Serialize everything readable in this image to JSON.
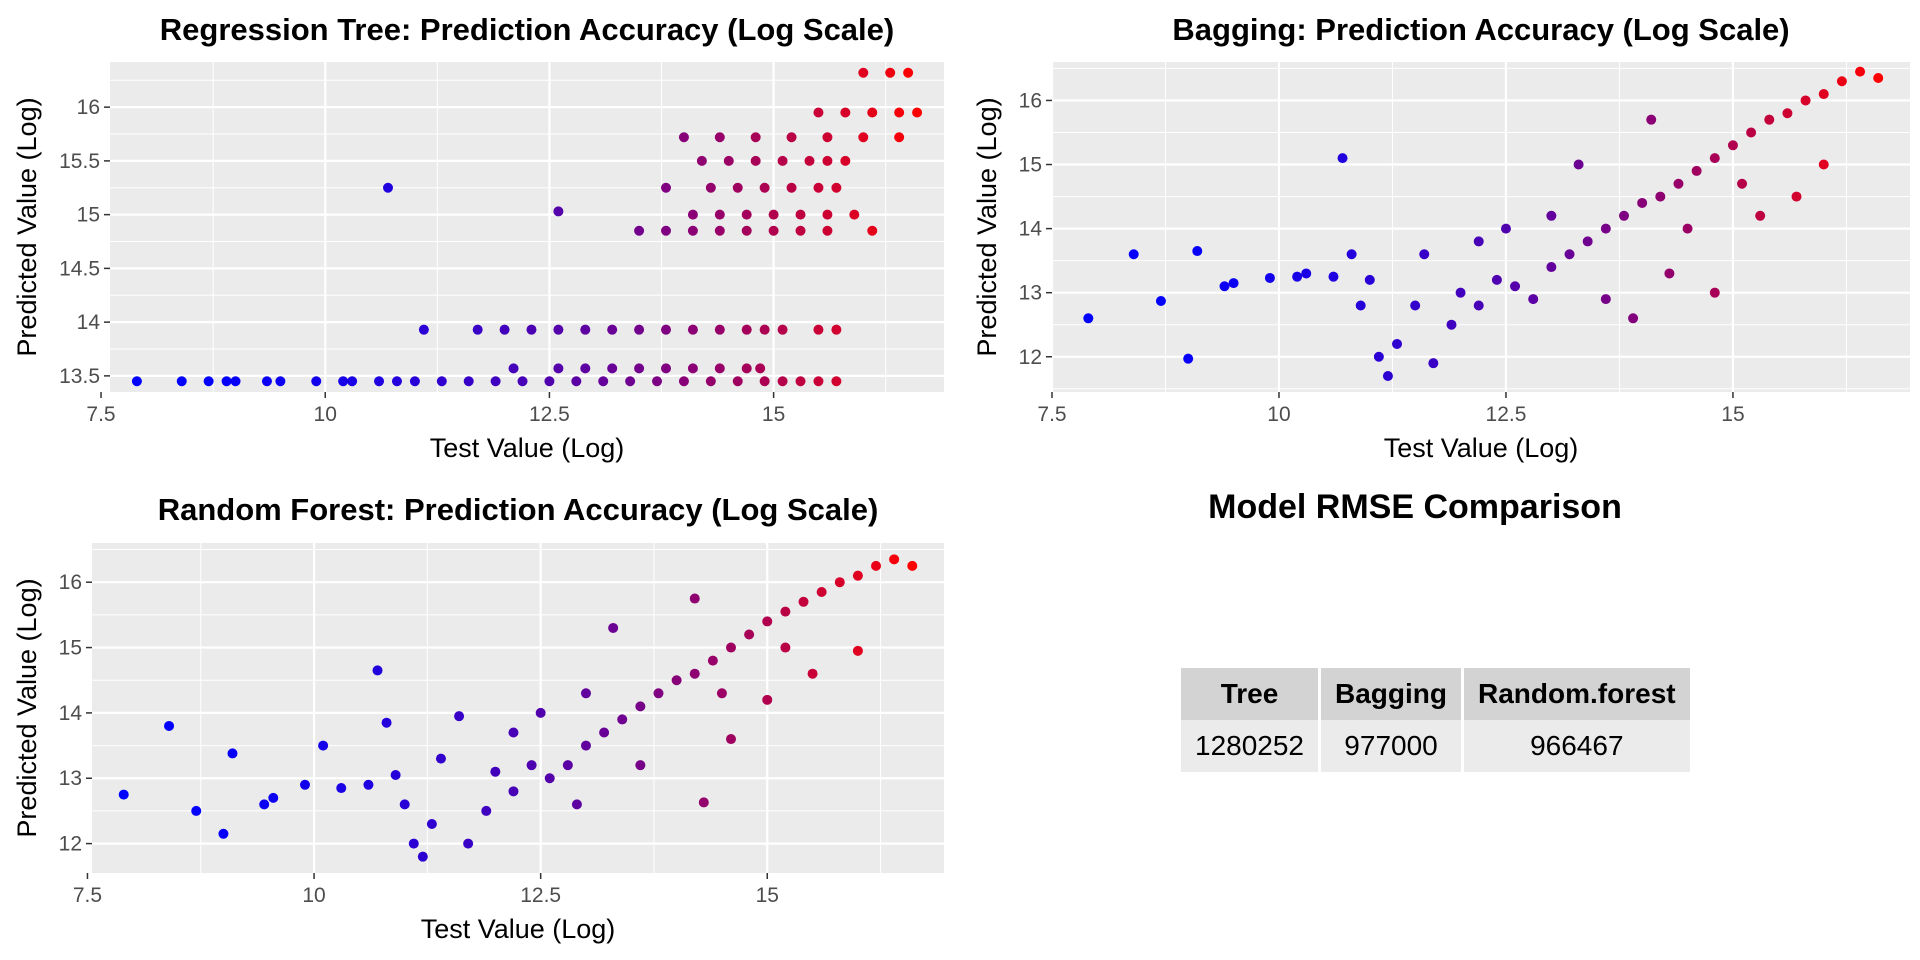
{
  "chart_data": [
    {
      "id": "tree",
      "type": "scatter",
      "title": "Regression Tree: Prediction Accuracy (Log Scale)",
      "xlabel": "Test Value (Log)",
      "ylabel": "Predicted Value (Log)",
      "xlim": [
        7.6,
        16.9
      ],
      "ylim": [
        13.35,
        16.42
      ],
      "xticks": [
        7.5,
        10.0,
        12.5,
        15.0
      ],
      "yticks": [
        13.5,
        14.0,
        14.5,
        15.0,
        15.5,
        16.0
      ],
      "grid": true,
      "color_low": "#0000ff",
      "color_high": "#ff0000",
      "points": [
        [
          7.9,
          13.45
        ],
        [
          8.4,
          13.45
        ],
        [
          8.7,
          13.45
        ],
        [
          8.9,
          13.45
        ],
        [
          9.0,
          13.45
        ],
        [
          9.35,
          13.45
        ],
        [
          9.5,
          13.45
        ],
        [
          9.9,
          13.45
        ],
        [
          10.2,
          13.45
        ],
        [
          10.3,
          13.45
        ],
        [
          10.6,
          13.45
        ],
        [
          10.8,
          13.45
        ],
        [
          11.0,
          13.45
        ],
        [
          11.3,
          13.45
        ],
        [
          11.6,
          13.45
        ],
        [
          11.9,
          13.45
        ],
        [
          12.2,
          13.45
        ],
        [
          12.5,
          13.45
        ],
        [
          12.8,
          13.45
        ],
        [
          13.1,
          13.45
        ],
        [
          13.4,
          13.45
        ],
        [
          13.7,
          13.45
        ],
        [
          14.0,
          13.45
        ],
        [
          14.3,
          13.45
        ],
        [
          14.6,
          13.45
        ],
        [
          14.9,
          13.45
        ],
        [
          15.1,
          13.45
        ],
        [
          15.3,
          13.45
        ],
        [
          15.5,
          13.45
        ],
        [
          15.7,
          13.45
        ],
        [
          12.1,
          13.57
        ],
        [
          12.6,
          13.57
        ],
        [
          12.9,
          13.57
        ],
        [
          13.2,
          13.57
        ],
        [
          13.5,
          13.57
        ],
        [
          13.8,
          13.57
        ],
        [
          14.1,
          13.57
        ],
        [
          14.4,
          13.57
        ],
        [
          14.7,
          13.57
        ],
        [
          14.85,
          13.57
        ],
        [
          11.1,
          13.93
        ],
        [
          11.7,
          13.93
        ],
        [
          12.0,
          13.93
        ],
        [
          12.3,
          13.93
        ],
        [
          12.6,
          13.93
        ],
        [
          12.9,
          13.93
        ],
        [
          13.2,
          13.93
        ],
        [
          13.5,
          13.93
        ],
        [
          13.8,
          13.93
        ],
        [
          14.1,
          13.93
        ],
        [
          14.4,
          13.93
        ],
        [
          14.7,
          13.93
        ],
        [
          14.9,
          13.93
        ],
        [
          15.1,
          13.93
        ],
        [
          15.5,
          13.93
        ],
        [
          15.7,
          13.93
        ],
        [
          10.7,
          15.25
        ],
        [
          12.6,
          15.03
        ],
        [
          13.5,
          14.85
        ],
        [
          13.8,
          14.85
        ],
        [
          14.1,
          14.85
        ],
        [
          14.4,
          14.85
        ],
        [
          14.7,
          14.85
        ],
        [
          15.0,
          14.85
        ],
        [
          15.3,
          14.85
        ],
        [
          15.6,
          14.85
        ],
        [
          16.1,
          14.85
        ],
        [
          14.1,
          15.0
        ],
        [
          14.4,
          15.0
        ],
        [
          14.7,
          15.0
        ],
        [
          15.0,
          15.0
        ],
        [
          15.3,
          15.0
        ],
        [
          15.6,
          15.0
        ],
        [
          15.9,
          15.0
        ],
        [
          13.8,
          15.25
        ],
        [
          14.3,
          15.25
        ],
        [
          14.6,
          15.25
        ],
        [
          14.9,
          15.25
        ],
        [
          15.2,
          15.25
        ],
        [
          15.5,
          15.25
        ],
        [
          15.7,
          15.25
        ],
        [
          14.2,
          15.5
        ],
        [
          14.5,
          15.5
        ],
        [
          14.8,
          15.5
        ],
        [
          15.1,
          15.5
        ],
        [
          15.4,
          15.5
        ],
        [
          15.6,
          15.5
        ],
        [
          15.8,
          15.5
        ],
        [
          14.0,
          15.72
        ],
        [
          14.4,
          15.72
        ],
        [
          14.8,
          15.72
        ],
        [
          15.2,
          15.72
        ],
        [
          15.6,
          15.72
        ],
        [
          16.0,
          15.72
        ],
        [
          16.4,
          15.72
        ],
        [
          15.5,
          15.95
        ],
        [
          15.8,
          15.95
        ],
        [
          16.1,
          15.95
        ],
        [
          16.4,
          15.95
        ],
        [
          16.6,
          15.95
        ],
        [
          16.0,
          16.32
        ],
        [
          16.3,
          16.32
        ],
        [
          16.5,
          16.32
        ]
      ]
    },
    {
      "id": "bagging",
      "type": "scatter",
      "title": "Bagging: Prediction Accuracy (Log Scale)",
      "xlabel": "Test Value (Log)",
      "ylabel": "Predicted Value (Log)",
      "xlim": [
        7.5,
        16.95
      ],
      "ylim": [
        11.45,
        16.6
      ],
      "xticks": [
        7.5,
        10.0,
        12.5,
        15.0
      ],
      "yticks": [
        12,
        13,
        14,
        15,
        16
      ],
      "grid": true,
      "color_low": "#0000ff",
      "color_high": "#ff0000",
      "points": [
        [
          7.9,
          12.6
        ],
        [
          8.4,
          13.6
        ],
        [
          8.7,
          12.87
        ],
        [
          9.0,
          11.97
        ],
        [
          9.1,
          13.65
        ],
        [
          9.4,
          13.1
        ],
        [
          9.5,
          13.15
        ],
        [
          9.9,
          13.23
        ],
        [
          10.2,
          13.25
        ],
        [
          10.3,
          13.3
        ],
        [
          10.6,
          13.25
        ],
        [
          10.7,
          15.1
        ],
        [
          10.8,
          13.6
        ],
        [
          11.0,
          13.2
        ],
        [
          10.9,
          12.8
        ],
        [
          11.1,
          12.0
        ],
        [
          11.2,
          11.7
        ],
        [
          11.3,
          12.2
        ],
        [
          11.5,
          12.8
        ],
        [
          11.6,
          13.6
        ],
        [
          11.7,
          11.9
        ],
        [
          11.9,
          12.5
        ],
        [
          12.0,
          13.0
        ],
        [
          12.2,
          12.8
        ],
        [
          12.4,
          13.2
        ],
        [
          12.6,
          13.1
        ],
        [
          12.8,
          12.9
        ],
        [
          13.0,
          13.4
        ],
        [
          13.2,
          13.6
        ],
        [
          13.4,
          13.8
        ],
        [
          13.6,
          14.0
        ],
        [
          13.8,
          14.2
        ],
        [
          14.0,
          14.4
        ],
        [
          14.2,
          14.5
        ],
        [
          14.4,
          14.7
        ],
        [
          14.6,
          14.9
        ],
        [
          14.8,
          15.1
        ],
        [
          15.0,
          15.3
        ],
        [
          15.2,
          15.5
        ],
        [
          15.4,
          15.7
        ],
        [
          15.6,
          15.8
        ],
        [
          15.8,
          16.0
        ],
        [
          16.0,
          16.1
        ],
        [
          16.2,
          16.3
        ],
        [
          16.4,
          16.45
        ],
        [
          16.6,
          16.35
        ],
        [
          14.1,
          15.7
        ],
        [
          13.3,
          15.0
        ],
        [
          13.9,
          12.6
        ],
        [
          14.3,
          13.3
        ],
        [
          14.8,
          13.0
        ],
        [
          15.3,
          14.2
        ],
        [
          15.7,
          14.5
        ],
        [
          16.0,
          15.0
        ],
        [
          12.5,
          14.0
        ],
        [
          13.0,
          14.2
        ],
        [
          12.2,
          13.8
        ],
        [
          13.6,
          12.9
        ],
        [
          14.5,
          14.0
        ],
        [
          15.1,
          14.7
        ]
      ]
    },
    {
      "id": "rf",
      "type": "scatter",
      "title": "Random Forest: Prediction Accuracy (Log Scale)",
      "xlabel": "Test Value (Log)",
      "ylabel": "Predicted Value (Log)",
      "xlim": [
        7.55,
        16.95
      ],
      "ylim": [
        11.55,
        16.6
      ],
      "xticks": [
        7.5,
        10.0,
        12.5,
        15.0
      ],
      "yticks": [
        12,
        13,
        14,
        15,
        16
      ],
      "grid": true,
      "color_low": "#0000ff",
      "color_high": "#ff0000",
      "points": [
        [
          7.9,
          12.75
        ],
        [
          8.4,
          13.8
        ],
        [
          8.7,
          12.5
        ],
        [
          9.0,
          12.15
        ],
        [
          9.1,
          13.38
        ],
        [
          9.45,
          12.6
        ],
        [
          9.55,
          12.7
        ],
        [
          9.9,
          12.9
        ],
        [
          10.1,
          13.5
        ],
        [
          10.3,
          12.85
        ],
        [
          10.6,
          12.9
        ],
        [
          10.7,
          14.65
        ],
        [
          10.8,
          13.85
        ],
        [
          10.9,
          13.05
        ],
        [
          11.0,
          12.6
        ],
        [
          11.1,
          12.0
        ],
        [
          11.2,
          11.8
        ],
        [
          11.3,
          12.3
        ],
        [
          11.4,
          13.3
        ],
        [
          11.6,
          13.95
        ],
        [
          11.7,
          12.0
        ],
        [
          11.9,
          12.5
        ],
        [
          12.0,
          13.1
        ],
        [
          12.2,
          12.8
        ],
        [
          12.4,
          13.2
        ],
        [
          12.6,
          13.0
        ],
        [
          12.8,
          13.2
        ],
        [
          13.0,
          13.5
        ],
        [
          13.2,
          13.7
        ],
        [
          13.4,
          13.9
        ],
        [
          13.6,
          14.1
        ],
        [
          13.8,
          14.3
        ],
        [
          14.0,
          14.5
        ],
        [
          14.2,
          14.6
        ],
        [
          14.4,
          14.8
        ],
        [
          14.6,
          15.0
        ],
        [
          14.8,
          15.2
        ],
        [
          15.0,
          15.4
        ],
        [
          15.2,
          15.55
        ],
        [
          15.4,
          15.7
        ],
        [
          15.6,
          15.85
        ],
        [
          15.8,
          16.0
        ],
        [
          16.0,
          16.1
        ],
        [
          16.2,
          16.25
        ],
        [
          16.4,
          16.35
        ],
        [
          16.6,
          16.25
        ],
        [
          14.2,
          15.75
        ],
        [
          13.3,
          15.3
        ],
        [
          14.3,
          12.63
        ],
        [
          14.6,
          13.6
        ],
        [
          15.0,
          14.2
        ],
        [
          15.5,
          14.6
        ],
        [
          16.0,
          14.95
        ],
        [
          12.5,
          14.0
        ],
        [
          13.0,
          14.3
        ],
        [
          12.2,
          13.7
        ],
        [
          13.6,
          13.2
        ],
        [
          14.5,
          14.3
        ],
        [
          15.2,
          15.0
        ],
        [
          12.9,
          12.6
        ]
      ]
    }
  ],
  "rmse": {
    "title": "Model RMSE Comparison",
    "headers": [
      "Tree",
      "Bagging",
      "Random.forest"
    ],
    "values": [
      "1280252",
      "977000",
      "966467"
    ]
  }
}
